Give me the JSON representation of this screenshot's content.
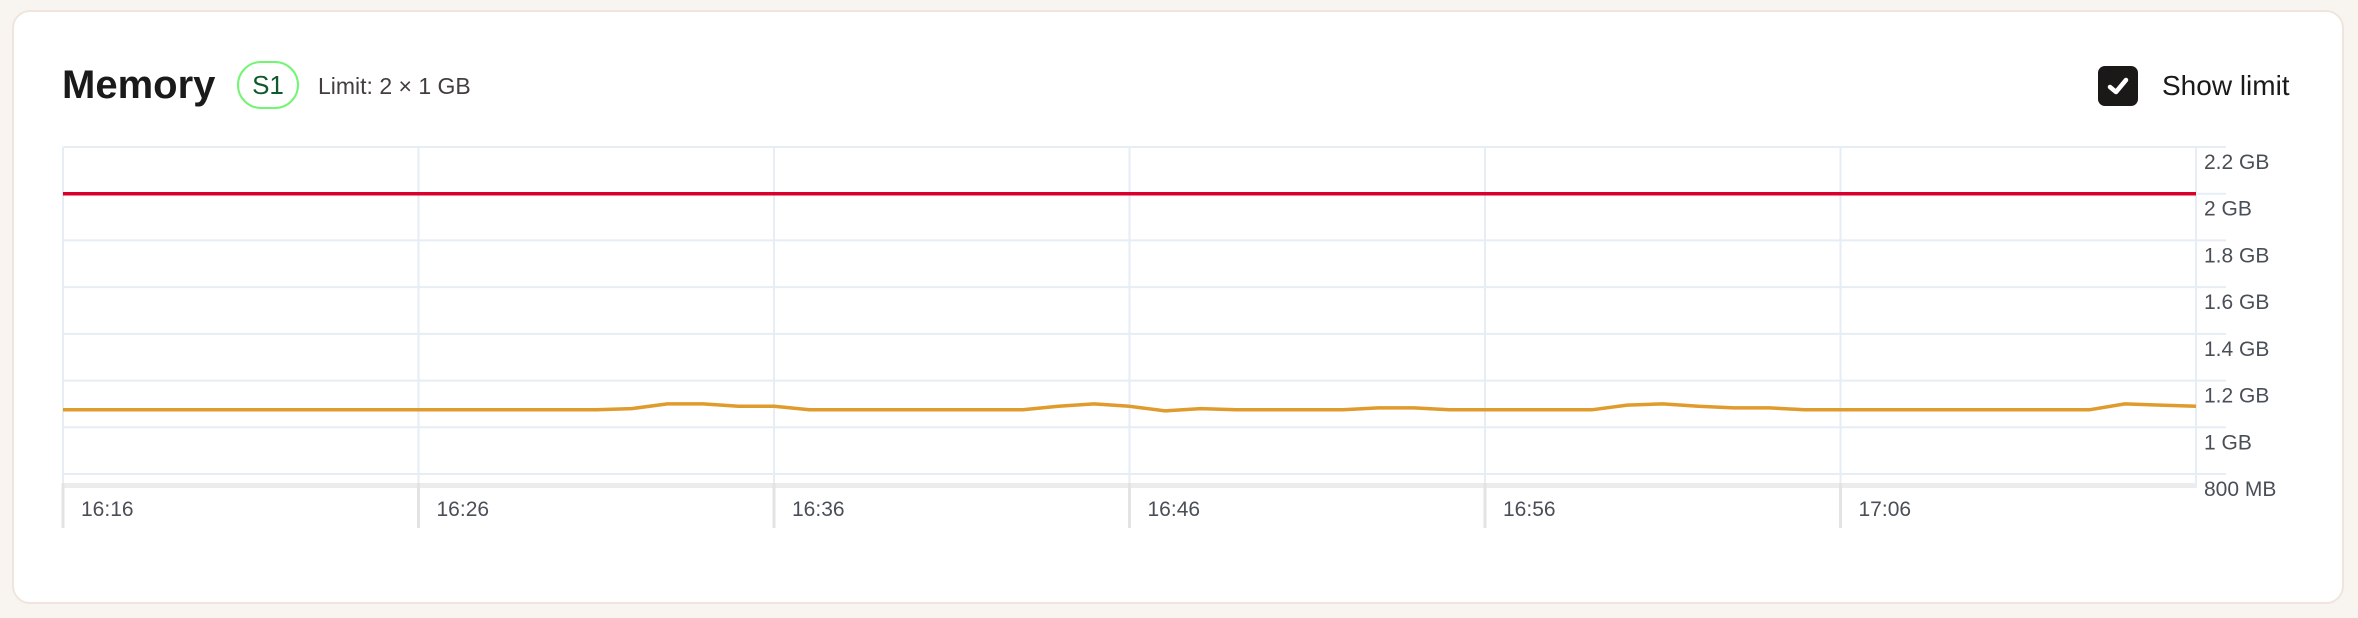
{
  "header": {
    "title": "Memory",
    "badge": "S1",
    "limit_text": "Limit: 2 × 1 GB",
    "show_limit_label": "Show limit",
    "show_limit_checked": true,
    "checkbox_icon": "check-icon"
  },
  "colors": {
    "series": "#e09b2d",
    "limit": "#d9002b",
    "grid": "#e6edf5",
    "badge_border": "#72f572",
    "badge_text": "#0f5a2c"
  },
  "chart_data": {
    "type": "line",
    "ylim": [
      0.8,
      2.2
    ],
    "y_unit": "GB",
    "y_ticks": [
      {
        "value": 2.2,
        "label": "2.2 GB"
      },
      {
        "value": 2.0,
        "label": "2 GB"
      },
      {
        "value": 1.8,
        "label": "1.8 GB"
      },
      {
        "value": 1.6,
        "label": "1.6 GB"
      },
      {
        "value": 1.4,
        "label": "1.4 GB"
      },
      {
        "value": 1.2,
        "label": "1.2 GB"
      },
      {
        "value": 1.0,
        "label": "1 GB"
      },
      {
        "value": 0.8,
        "label": "800 MB"
      }
    ],
    "x_ticks": [
      "16:16",
      "16:26",
      "16:36",
      "16:46",
      "16:56",
      "17:06"
    ],
    "grid": true,
    "limit_line": 2.0,
    "series": [
      {
        "x": [
          "16:16",
          "16:17",
          "16:18",
          "16:19",
          "16:20",
          "16:21",
          "16:22",
          "16:23",
          "16:24",
          "16:25",
          "16:26",
          "16:27",
          "16:28",
          "16:29",
          "16:30",
          "16:31",
          "16:32",
          "16:33",
          "16:34",
          "16:35",
          "16:36",
          "16:37",
          "16:38",
          "16:39",
          "16:40",
          "16:41",
          "16:42",
          "16:43",
          "16:44",
          "16:45",
          "16:46",
          "16:47",
          "16:48",
          "16:49",
          "16:50",
          "16:51",
          "16:52",
          "16:53",
          "16:54",
          "16:55",
          "16:56",
          "16:57",
          "16:58",
          "16:59",
          "17:00",
          "17:01",
          "17:02",
          "17:03",
          "17:04",
          "17:05",
          "17:06",
          "17:07",
          "17:08",
          "17:09",
          "17:10",
          "17:11",
          "17:12",
          "17:13",
          "17:14",
          "17:15",
          "17:16"
        ],
        "values": [
          1.075,
          1.075,
          1.075,
          1.075,
          1.075,
          1.075,
          1.075,
          1.075,
          1.075,
          1.075,
          1.075,
          1.075,
          1.075,
          1.075,
          1.075,
          1.075,
          1.08,
          1.1,
          1.1,
          1.09,
          1.09,
          1.075,
          1.075,
          1.075,
          1.075,
          1.075,
          1.075,
          1.075,
          1.09,
          1.1,
          1.09,
          1.07,
          1.08,
          1.075,
          1.075,
          1.075,
          1.075,
          1.083,
          1.083,
          1.075,
          1.075,
          1.075,
          1.075,
          1.075,
          1.095,
          1.1,
          1.09,
          1.083,
          1.083,
          1.075,
          1.075,
          1.075,
          1.075,
          1.075,
          1.075,
          1.075,
          1.075,
          1.075,
          1.1,
          1.095,
          1.09
        ]
      }
    ]
  }
}
